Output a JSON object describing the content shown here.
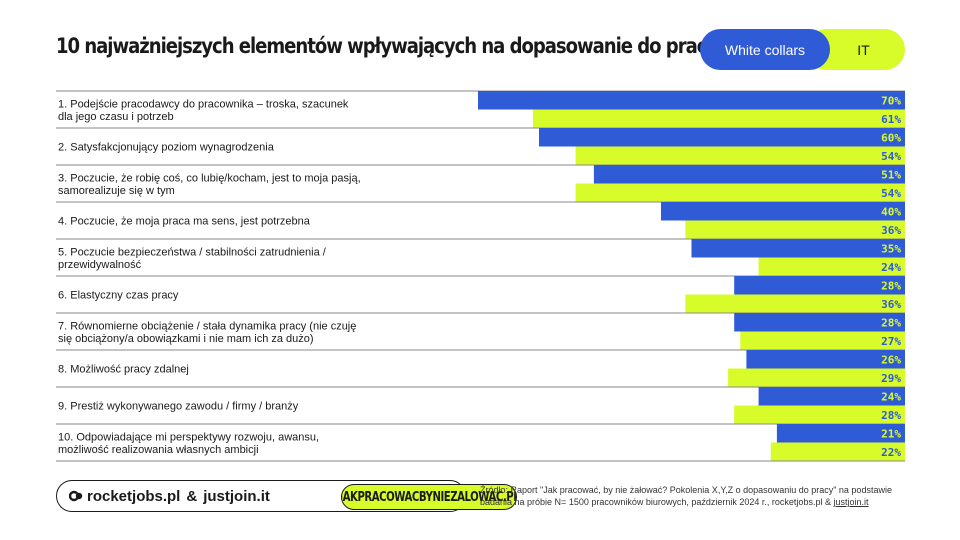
{
  "title": "10 najważniejszych elementów wpływających na dopasowanie do pracy",
  "legend": [
    {
      "label": "White collars",
      "color": "#2f5bd6"
    },
    {
      "label": "IT",
      "color": "#d8fb2a"
    }
  ],
  "chart_data": {
    "type": "bar",
    "orientation": "horizontal",
    "title": "10 najważniejszych elementów wpływających na dopasowanie do pracy",
    "unit": "%",
    "xlim": [
      0,
      100
    ],
    "grid": false,
    "legend_position": "top-right",
    "categories": [
      [
        "1. Podejście pracodawcy do pracownika  – troska, szacunek",
        "dla jego czasu i potrzeb"
      ],
      [
        "2. Satysfakcjonujący poziom wynagrodzenia"
      ],
      [
        "3. Poczucie, że robię coś, co lubię/kocham, jest to moja pasją,",
        "samorealizuje się w tym"
      ],
      [
        "4. Poczucie, że moja praca ma sens, jest potrzebna"
      ],
      [
        "5. Poczucie bezpieczeństwa / stabilności zatrudnienia /",
        "przewidywalność"
      ],
      [
        "6. Elastyczny czas pracy"
      ],
      [
        "7. Równomierne obciążenie / stała dynamika pracy (nie czuję",
        "się obciążony/a obowiązkami i nie mam ich za dużo)"
      ],
      [
        "8. Możliwość pracy zdalnej"
      ],
      [
        "9. Prestiż wykonywanego zawodu / firmy / branży"
      ],
      [
        "10. Odpowiadające mi perspektywy rozwoju, awansu,",
        "możliwość realizowania własnych ambicji"
      ]
    ],
    "series": [
      {
        "name": "White collars",
        "color": "#2f5bd6",
        "label_color": "#d8fb2a",
        "values": [
          70,
          60,
          51,
          40,
          35,
          28,
          28,
          26,
          24,
          21
        ]
      },
      {
        "name": "IT",
        "color": "#d8fb2a",
        "label_color": "#2f5bd6",
        "values": [
          61,
          54,
          54,
          36,
          24,
          36,
          27,
          29,
          28,
          22
        ]
      }
    ]
  },
  "footer": {
    "brand1": "rocketjobs.pl",
    "amp": "&",
    "brand2": "justjoin.it",
    "campaign": "JAKPRACOWACBYNIEZALOWAC.PL",
    "source_text": "Źródło: Raport \"Jak pracować, by nie żałować? Pokolenia X,Y,Z o dopasowaniu do pracy\" na podstawie badania na próbie N= 1500 pracowników biurowych, październik 2024 r., rocketjobs.pl & ",
    "source_link": "justjoin.it"
  }
}
